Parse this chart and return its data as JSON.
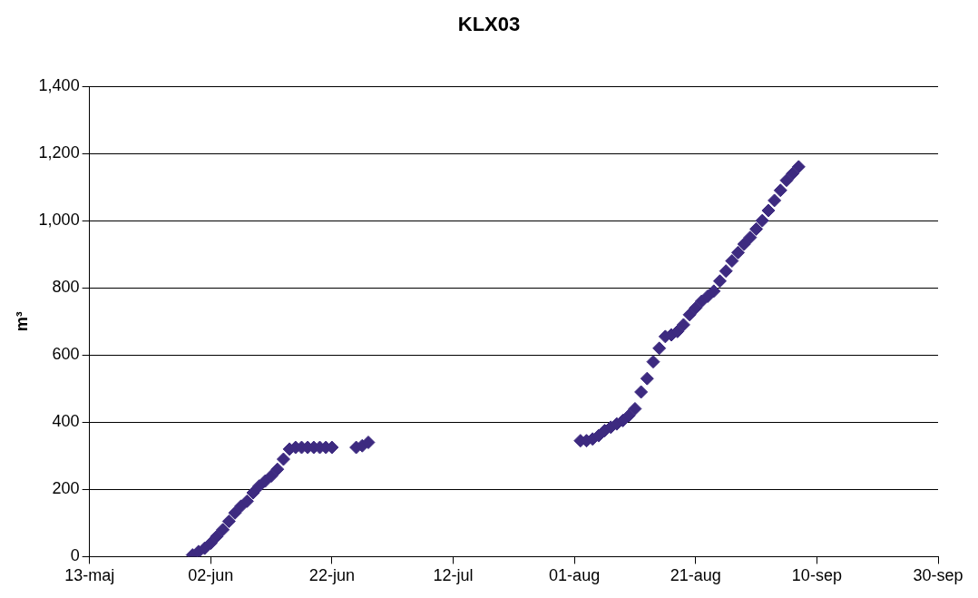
{
  "chart_data": {
    "type": "scatter",
    "title": "KLX03",
    "ylabel": "m³",
    "marker": "diamond",
    "grid": "y",
    "x": [
      "--05-30",
      "--05-31",
      "--06-01",
      "--06-02",
      "--06-03",
      "--06-04",
      "--06-05",
      "--06-06",
      "--06-07",
      "--06-08",
      "--06-09",
      "--06-10",
      "--06-11",
      "--06-12",
      "--06-13",
      "--06-14",
      "--06-15",
      "--06-16",
      "--06-17",
      "--06-18",
      "--06-19",
      "--06-20",
      "--06-21",
      "--06-22",
      "--06-26",
      "--06-27",
      "--06-28",
      "--08-02",
      "--08-03",
      "--08-04",
      "--08-05",
      "--08-06",
      "--08-07",
      "--08-08",
      "--08-09",
      "--08-10",
      "--08-11",
      "--08-12",
      "--08-13",
      "--08-14",
      "--08-15",
      "--08-16",
      "--08-17",
      "--08-18",
      "--08-19",
      "--08-20",
      "--08-21",
      "--08-22",
      "--08-23",
      "--08-24",
      "--08-25",
      "--08-26",
      "--08-27",
      "--08-28",
      "--08-29",
      "--08-30",
      "--08-31",
      "--09-01",
      "--09-02",
      "--09-03",
      "--09-04",
      "--09-05",
      "--09-06",
      "--09-07"
    ],
    "series": [
      {
        "color": "#3d2a80",
        "values": [
          5,
          15,
          25,
          40,
          60,
          80,
          105,
          130,
          150,
          165,
          190,
          210,
          225,
          240,
          260,
          290,
          320,
          325,
          325,
          325,
          325,
          325,
          325,
          325,
          325,
          330,
          340,
          345,
          345,
          350,
          360,
          375,
          385,
          395,
          405,
          420,
          440,
          490,
          530,
          580,
          620,
          655,
          660,
          670,
          690,
          720,
          740,
          760,
          775,
          790,
          820,
          850,
          880,
          905,
          930,
          950,
          975,
          1000,
          1030,
          1060,
          1090,
          1120,
          1140,
          1160
        ]
      }
    ],
    "xlim": [
      "--05-13",
      "--09-30"
    ],
    "xticks": [
      {
        "value": "--05-13",
        "label": "13-maj"
      },
      {
        "value": "--06-02",
        "label": "02-jun"
      },
      {
        "value": "--06-22",
        "label": "22-jun"
      },
      {
        "value": "--07-12",
        "label": "12-jul"
      },
      {
        "value": "--08-01",
        "label": "01-aug"
      },
      {
        "value": "--08-21",
        "label": "21-aug"
      },
      {
        "value": "--09-10",
        "label": "10-sep"
      },
      {
        "value": "--09-30",
        "label": "30-sep"
      }
    ],
    "ylim": [
      0,
      1400
    ],
    "yticks": [
      0,
      200,
      400,
      600,
      800,
      {
        "value": 1000,
        "label": "1,000"
      },
      {
        "value": 1200,
        "label": "1,200"
      },
      {
        "value": 1400,
        "label": "1,400"
      }
    ]
  }
}
